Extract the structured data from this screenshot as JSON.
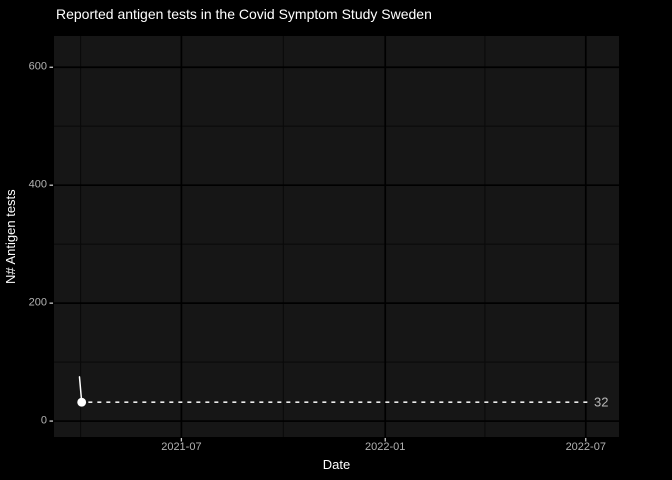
{
  "colors": {
    "background": "#000000",
    "panel_background": "#161616",
    "grid_major": "#000000",
    "grid_minor": "#0a0a0a",
    "tick_mark": "#c9c9c9",
    "tick_label": "#b3b3b3",
    "title_text": "#ffffff",
    "series_color": "#ffffff",
    "annotation_line": "#ececec",
    "annotation_text": "#b8b8b8"
  },
  "chart_data": {
    "type": "line",
    "title": "Reported antigen tests in the Covid Symptom Study Sweden",
    "xlabel": "Date",
    "ylabel": "N# Antigen tests",
    "legend": "none",
    "grid": "major and minor gridlines, black on dark panel",
    "x_ticks": [
      {
        "label": "2021-07",
        "date": "2021-07-01"
      },
      {
        "label": "2022-01",
        "date": "2022-01-01"
      },
      {
        "label": "2022-07",
        "date": "2022-07-01"
      }
    ],
    "x_minor_gridlines": [
      "2021-04-01",
      "2021-10-01",
      "2022-04-01"
    ],
    "x_range": [
      "2021-03-08",
      "2022-07-31"
    ],
    "y_ticks": [
      0,
      200,
      400,
      600
    ],
    "y_minor_gridlines": [
      100,
      300,
      500
    ],
    "y_range": [
      -27,
      653
    ],
    "series": [
      {
        "name": "Reported antigen tests",
        "color": "#ffffff",
        "points": [
          {
            "date": "2021-03-31",
            "value": 75
          },
          {
            "date": "2021-04-02",
            "value": 32
          }
        ],
        "end_marker": true
      }
    ],
    "annotation": {
      "type": "dashed_hline",
      "value": 32,
      "label": "32",
      "from_date": "2021-04-08",
      "to_date": "2022-07-03"
    }
  }
}
